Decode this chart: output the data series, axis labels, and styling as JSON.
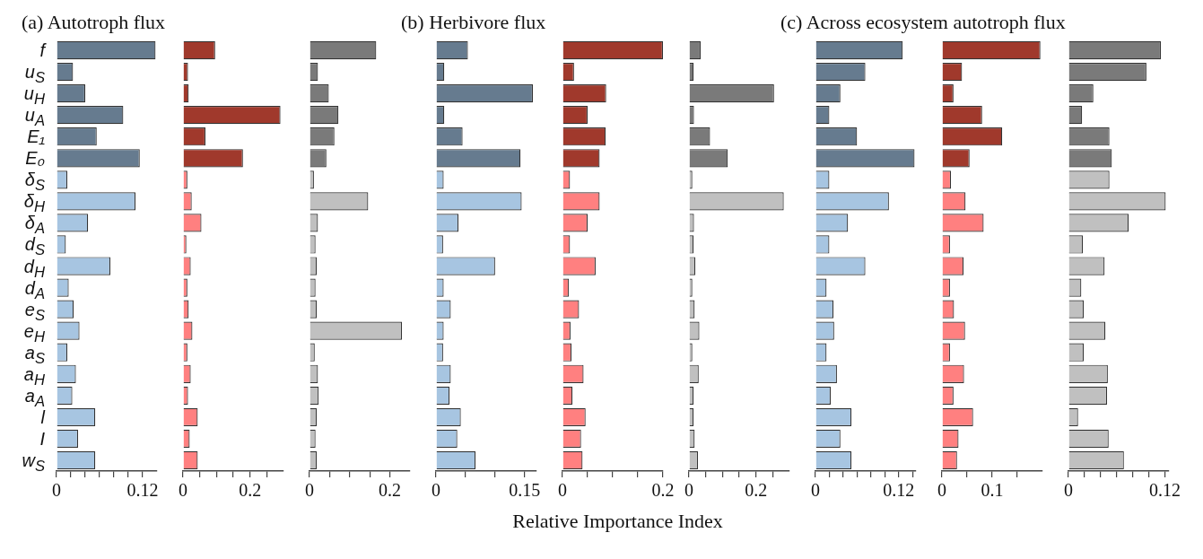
{
  "chart_data": [
    {
      "type": "bar",
      "orientation": "horizontal",
      "title": "(a) Autotroph flux",
      "categories": [
        "f",
        "u$_{S}$",
        "u$_{H}$",
        "u$_{A}$",
        "E₁",
        "E₀",
        "δ$_{S}$",
        "δ$_{H}$",
        "δ$_{A}$",
        "d$_{S}$",
        "d$_{H}$",
        "d$_{A}$",
        "e$_{S}$",
        "e$_{H}$",
        "a$_{S}$",
        "a$_{H}$",
        "a$_{A}$",
        "l",
        "I",
        "w$_{S}$"
      ],
      "values": [
        0.138,
        0.023,
        0.04,
        0.093,
        0.056,
        0.116,
        0.015,
        0.11,
        0.044,
        0.013,
        0.075,
        0.017,
        0.024,
        0.032,
        0.015,
        0.027,
        0.022,
        0.054,
        0.03,
        0.054
      ],
      "colors": [
        "#667b8f",
        "#667b8f",
        "#667b8f",
        "#667b8f",
        "#667b8f",
        "#667b8f",
        "#a7c5e1",
        "#a7c5e1",
        "#a7c5e1",
        "#a7c5e1",
        "#a7c5e1",
        "#a7c5e1",
        "#a7c5e1",
        "#a7c5e1",
        "#a7c5e1",
        "#a7c5e1",
        "#a7c5e1",
        "#a7c5e1",
        "#a7c5e1",
        "#a7c5e1"
      ],
      "xlim": [
        0,
        0.14
      ],
      "xticks": [
        0,
        {
          "value": 0.02,
          "label": null
        },
        {
          "value": 0.04,
          "label": null
        },
        {
          "value": 0.06,
          "label": null
        },
        {
          "value": 0.08,
          "label": null
        },
        {
          "value": 0.1,
          "label": null
        },
        0.12
      ]
    },
    {
      "type": "bar",
      "orientation": "horizontal",
      "tick_labels": "x",
      "categories": [
        null,
        null,
        null,
        null,
        null,
        null,
        null,
        null,
        null,
        null,
        null,
        null,
        null,
        null,
        null,
        null,
        null,
        null,
        null,
        null
      ],
      "values": [
        0.096,
        0.015,
        0.017,
        0.291,
        0.067,
        0.179,
        0.013,
        0.026,
        0.055,
        0.01,
        0.023,
        0.013,
        0.017,
        0.028,
        0.013,
        0.023,
        0.015,
        0.044,
        0.02,
        0.044
      ],
      "colors": [
        "#a0392c",
        "#a0392c",
        "#a0392c",
        "#a0392c",
        "#a0392c",
        "#a0392c",
        "#ff8080",
        "#ff8080",
        "#ff8080",
        "#ff8080",
        "#ff8080",
        "#ff8080",
        "#ff8080",
        "#ff8080",
        "#ff8080",
        "#ff8080",
        "#ff8080",
        "#ff8080",
        "#ff8080",
        "#ff8080"
      ],
      "xlim": [
        0,
        0.3
      ],
      "xticks": [
        0,
        {
          "value": 0.05,
          "label": null
        },
        {
          "value": 0.1,
          "label": null
        },
        {
          "value": 0.15,
          "label": null
        },
        0.2,
        {
          "value": 0.25,
          "label": null
        }
      ]
    },
    {
      "type": "bar",
      "orientation": "horizontal",
      "tick_labels": "x",
      "categories": [
        null,
        null,
        null,
        null,
        null,
        null,
        null,
        null,
        null,
        null,
        null,
        null,
        null,
        null,
        null,
        null,
        null,
        null,
        null,
        null
      ],
      "values": [
        0.166,
        0.021,
        0.048,
        0.072,
        0.062,
        0.042,
        0.011,
        0.146,
        0.021,
        0.015,
        0.018,
        0.015,
        0.018,
        0.23,
        0.013,
        0.021,
        0.023,
        0.018,
        0.015,
        0.018
      ],
      "colors": [
        "#7a7a7a",
        "#7a7a7a",
        "#7a7a7a",
        "#7a7a7a",
        "#7a7a7a",
        "#7a7a7a",
        "#c0c0c0",
        "#c0c0c0",
        "#c0c0c0",
        "#c0c0c0",
        "#c0c0c0",
        "#c0c0c0",
        "#c0c0c0",
        "#c0c0c0",
        "#c0c0c0",
        "#c0c0c0",
        "#c0c0c0",
        "#c0c0c0",
        "#c0c0c0",
        "#c0c0c0"
      ],
      "xlim": [
        0,
        0.25
      ],
      "xticks": [
        0,
        {
          "value": 0.05,
          "label": null
        },
        {
          "value": 0.1,
          "label": null
        },
        {
          "value": 0.15,
          "label": null
        },
        0.2
      ]
    },
    {
      "type": "bar",
      "orientation": "horizontal",
      "tick_labels": "x",
      "title": "(b) Herbivore flux",
      "categories": [
        null,
        null,
        null,
        null,
        null,
        null,
        null,
        null,
        null,
        null,
        null,
        null,
        null,
        null,
        null,
        null,
        null,
        null,
        null,
        null
      ],
      "values": [
        0.054,
        0.014,
        0.164,
        0.014,
        0.045,
        0.143,
        0.013,
        0.145,
        0.038,
        0.012,
        0.1,
        0.013,
        0.025,
        0.013,
        0.012,
        0.025,
        0.023,
        0.042,
        0.036,
        0.067
      ],
      "colors": [
        "#667b8f",
        "#667b8f",
        "#667b8f",
        "#667b8f",
        "#667b8f",
        "#667b8f",
        "#a7c5e1",
        "#a7c5e1",
        "#a7c5e1",
        "#a7c5e1",
        "#a7c5e1",
        "#a7c5e1",
        "#a7c5e1",
        "#a7c5e1",
        "#a7c5e1",
        "#a7c5e1",
        "#a7c5e1",
        "#a7c5e1",
        "#a7c5e1",
        "#a7c5e1"
      ],
      "xlim": [
        0,
        0.17
      ],
      "xticks": [
        0,
        {
          "value": 0.05,
          "label": null
        },
        {
          "value": 0.1,
          "label": null
        },
        0.15
      ]
    },
    {
      "type": "bar",
      "orientation": "horizontal",
      "tick_labels": "x",
      "xlabel": "Relative Importance Index",
      "categories": [
        null,
        null,
        null,
        null,
        null,
        null,
        null,
        null,
        null,
        null,
        null,
        null,
        null,
        null,
        null,
        null,
        null,
        null,
        null,
        null
      ],
      "values": [
        0.2,
        0.023,
        0.087,
        0.05,
        0.086,
        0.074,
        0.015,
        0.074,
        0.05,
        0.015,
        0.066,
        0.013,
        0.033,
        0.016,
        0.018,
        0.042,
        0.02,
        0.046,
        0.037,
        0.04
      ],
      "colors": [
        "#a0392c",
        "#a0392c",
        "#a0392c",
        "#a0392c",
        "#a0392c",
        "#a0392c",
        "#ff8080",
        "#ff8080",
        "#ff8080",
        "#ff8080",
        "#ff8080",
        "#ff8080",
        "#ff8080",
        "#ff8080",
        "#ff8080",
        "#ff8080",
        "#ff8080",
        "#ff8080",
        "#ff8080",
        "#ff8080"
      ],
      "xlim": [
        0,
        0.2
      ],
      "xticks": [
        0,
        {
          "value": 0.05,
          "label": null
        },
        {
          "value": 0.1,
          "label": null
        },
        {
          "value": 0.15,
          "label": null
        },
        0.2
      ]
    },
    {
      "type": "bar",
      "orientation": "horizontal",
      "tick_labels": "x",
      "categories": [
        null,
        null,
        null,
        null,
        null,
        null,
        null,
        null,
        null,
        null,
        null,
        null,
        null,
        null,
        null,
        null,
        null,
        null,
        null,
        null
      ],
      "values": [
        0.035,
        0.014,
        0.254,
        0.015,
        0.063,
        0.116,
        0.01,
        0.283,
        0.015,
        0.014,
        0.019,
        0.01,
        0.017,
        0.031,
        0.01,
        0.029,
        0.014,
        0.014,
        0.017,
        0.027
      ],
      "colors": [
        "#7a7a7a",
        "#7a7a7a",
        "#7a7a7a",
        "#7a7a7a",
        "#7a7a7a",
        "#7a7a7a",
        "#c0c0c0",
        "#c0c0c0",
        "#c0c0c0",
        "#c0c0c0",
        "#c0c0c0",
        "#c0c0c0",
        "#c0c0c0",
        "#c0c0c0",
        "#c0c0c0",
        "#c0c0c0",
        "#c0c0c0",
        "#c0c0c0",
        "#c0c0c0",
        "#c0c0c0"
      ],
      "xlim": [
        0,
        0.3
      ],
      "xticks": [
        0,
        {
          "value": 0.05,
          "label": null
        },
        {
          "value": 0.1,
          "label": null
        },
        {
          "value": 0.15,
          "label": null
        },
        0.2,
        {
          "value": 0.25,
          "label": null
        }
      ]
    },
    {
      "type": "bar",
      "orientation": "horizontal",
      "tick_labels": "x",
      "title": "(c) Across ecosystem autotroph flux",
      "categories": [
        null,
        null,
        null,
        null,
        null,
        null,
        null,
        null,
        null,
        null,
        null,
        null,
        null,
        null,
        null,
        null,
        null,
        null,
        null,
        null
      ],
      "values": [
        0.126,
        0.072,
        0.036,
        0.02,
        0.06,
        0.143,
        0.02,
        0.106,
        0.047,
        0.02,
        0.072,
        0.016,
        0.026,
        0.027,
        0.016,
        0.031,
        0.022,
        0.052,
        0.036,
        0.052
      ],
      "colors": [
        "#667b8f",
        "#667b8f",
        "#667b8f",
        "#667b8f",
        "#667b8f",
        "#667b8f",
        "#a7c5e1",
        "#a7c5e1",
        "#a7c5e1",
        "#a7c5e1",
        "#a7c5e1",
        "#a7c5e1",
        "#a7c5e1",
        "#a7c5e1",
        "#a7c5e1",
        "#a7c5e1",
        "#a7c5e1",
        "#a7c5e1",
        "#a7c5e1",
        "#a7c5e1"
      ],
      "xlim": [
        0,
        0.145
      ],
      "xticks": [
        0,
        {
          "value": 0.02,
          "label": null
        },
        {
          "value": 0.04,
          "label": null
        },
        {
          "value": 0.06,
          "label": null
        },
        {
          "value": 0.08,
          "label": null
        },
        {
          "value": 0.1,
          "label": null
        },
        0.12,
        {
          "value": 0.14,
          "label": null
        }
      ]
    },
    {
      "type": "bar",
      "orientation": "horizontal",
      "tick_labels": "x",
      "categories": [
        null,
        null,
        null,
        null,
        null,
        null,
        null,
        null,
        null,
        null,
        null,
        null,
        null,
        null,
        null,
        null,
        null,
        null,
        null,
        null
      ],
      "values": [
        0.196,
        0.04,
        0.023,
        0.08,
        0.12,
        0.055,
        0.018,
        0.047,
        0.083,
        0.016,
        0.043,
        0.016,
        0.024,
        0.046,
        0.016,
        0.044,
        0.023,
        0.062,
        0.033,
        0.03
      ],
      "colors": [
        "#a0392c",
        "#a0392c",
        "#a0392c",
        "#a0392c",
        "#a0392c",
        "#a0392c",
        "#ff8080",
        "#ff8080",
        "#ff8080",
        "#ff8080",
        "#ff8080",
        "#ff8080",
        "#ff8080",
        "#ff8080",
        "#ff8080",
        "#ff8080",
        "#ff8080",
        "#ff8080",
        "#ff8080",
        "#ff8080"
      ],
      "xlim": [
        0,
        0.2
      ],
      "xticks": [
        0,
        {
          "value": 0.05,
          "label": null
        },
        0.1,
        {
          "value": 0.15,
          "label": null
        }
      ]
    },
    {
      "type": "bar",
      "orientation": "horizontal",
      "tick_labels": "x",
      "categories": [
        null,
        null,
        null,
        null,
        null,
        null,
        null,
        null,
        null,
        null,
        null,
        null,
        null,
        null,
        null,
        null,
        null,
        null,
        null,
        null
      ],
      "values": [
        0.115,
        0.097,
        0.031,
        0.017,
        0.051,
        0.054,
        0.051,
        0.121,
        0.075,
        0.018,
        0.045,
        0.016,
        0.019,
        0.046,
        0.019,
        0.049,
        0.048,
        0.012,
        0.05,
        0.069
      ],
      "colors": [
        "#7a7a7a",
        "#7a7a7a",
        "#7a7a7a",
        "#7a7a7a",
        "#7a7a7a",
        "#7a7a7a",
        "#c0c0c0",
        "#c0c0c0",
        "#c0c0c0",
        "#c0c0c0",
        "#c0c0c0",
        "#c0c0c0",
        "#c0c0c0",
        "#c0c0c0",
        "#c0c0c0",
        "#c0c0c0",
        "#c0c0c0",
        "#c0c0c0",
        "#c0c0c0",
        "#c0c0c0"
      ],
      "xlim": [
        0,
        0.125
      ],
      "xticks": [
        0,
        {
          "value": 0.02,
          "label": null
        },
        {
          "value": 0.04,
          "label": null
        },
        {
          "value": 0.06,
          "label": null
        },
        {
          "value": 0.08,
          "label": null
        },
        {
          "value": 0.1,
          "label": null
        },
        0.12
      ]
    }
  ]
}
